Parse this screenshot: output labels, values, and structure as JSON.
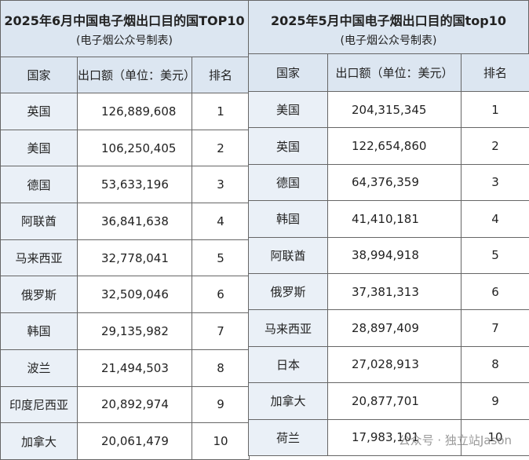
{
  "tables": [
    {
      "title": "2025年6月中国电子烟出口目的国TOP10",
      "subtitle": "(电子烟公众号制表)",
      "header": [
        "国家",
        "出口额（单位：美元）",
        "排名"
      ],
      "rows": [
        [
          "英国",
          "126,889,608",
          "1"
        ],
        [
          "美国",
          "106,250,405",
          "2"
        ],
        [
          "德国",
          "53,633,196",
          "3"
        ],
        [
          "阿联酋",
          "36,841,638",
          "4"
        ],
        [
          "马来西亚",
          "32,778,041",
          "5"
        ],
        [
          "俄罗斯",
          "32,509,046",
          "6"
        ],
        [
          "韩国",
          "29,135,982",
          "7"
        ],
        [
          "波兰",
          "21,494,503",
          "8"
        ],
        [
          "印度尼西亚",
          "20,892,974",
          "9"
        ],
        [
          "加拿大",
          "20,061,479",
          "10"
        ]
      ]
    },
    {
      "title": "2025年5月中国电子烟出口目的国top10",
      "subtitle": "(电子烟公众号制表)",
      "header": [
        "国家",
        "出口额（单位：美元）",
        "排名"
      ],
      "rows": [
        [
          "美国",
          "204,315,345",
          "1"
        ],
        [
          "英国",
          "122,654,860",
          "2"
        ],
        [
          "德国",
          "64,376,359",
          "3"
        ],
        [
          "韩国",
          "41,410,181",
          "4"
        ],
        [
          "阿联酋",
          "38,994,918",
          "5"
        ],
        [
          "俄罗斯",
          "37,381,313",
          "6"
        ],
        [
          "马来西亚",
          "28,897,409",
          "7"
        ],
        [
          "日本",
          "27,028,913",
          "8"
        ],
        [
          "加拿大",
          "20,877,701",
          "9"
        ],
        [
          "荷兰",
          "17,983,101",
          "10"
        ]
      ]
    }
  ],
  "watermark": "公众号 · 独立站Jason"
}
